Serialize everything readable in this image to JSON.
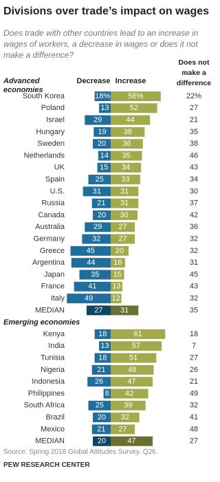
{
  "title": "Divisions over trade’s impact on wages",
  "subtitle": "Does trade with other countries lead to an increase in wages of workers, a decrease in wages or does it not make a difference?",
  "source": "Source: Spring 2018 Global Attitudes Survey. Q26.",
  "credit": "PEW RESEARCH CENTER",
  "chart_data": {
    "type": "diverging-bar",
    "column_headers": [
      "Decrease",
      "Increase",
      "Does not make a difference"
    ],
    "groups": [
      {
        "name": "Advanced economies",
        "categories": [
          "South Korea",
          "Poland",
          "Israel",
          "Hungary",
          "Sweden",
          "Netherlands",
          "UK",
          "Spain",
          "U.S.",
          "Russia",
          "Canada",
          "Australia",
          "Germany",
          "Greece",
          "Argentina",
          "Japan",
          "France",
          "Italy",
          "MEDIAN"
        ],
        "series": [
          {
            "name": "Decrease",
            "values": [
              18,
              13,
              29,
              19,
              20,
              14,
              15,
              25,
              31,
              21,
              20,
              29,
              32,
              45,
              44,
              35,
              41,
              49,
              27
            ],
            "value_labels": [
              "18%",
              "13",
              "29",
              "19",
              "20",
              "14",
              "15",
              "25",
              "31",
              "21",
              "20",
              "29",
              "32",
              "45",
              "44",
              "35",
              "41",
              "49",
              "27"
            ],
            "colors": [
              "#1f6e9c",
              "#1f6e9c",
              "#1f6e9c",
              "#1f6e9c",
              "#1f6e9c",
              "#1f6e9c",
              "#1f6e9c",
              "#1f6e9c",
              "#1f6e9c",
              "#1f6e9c",
              "#1f6e9c",
              "#1f6e9c",
              "#1f6e9c",
              "#1f6e9c",
              "#1f6e9c",
              "#1f6e9c",
              "#1f6e9c",
              "#1f6e9c",
              "#0c4566"
            ]
          },
          {
            "name": "Increase",
            "values": [
              56,
              52,
              44,
              38,
              36,
              35,
              34,
              33,
              31,
              31,
              30,
              27,
              27,
              20,
              16,
              15,
              13,
              12,
              31
            ],
            "value_labels": [
              "56%",
              "52",
              "44",
              "38",
              "36",
              "35",
              "34",
              "33",
              "31",
              "31",
              "30",
              "27",
              "27",
              "20",
              "16",
              "15",
              "13",
              "12",
              "31"
            ],
            "colors": [
              "#a2aa4c",
              "#a2aa4c",
              "#a2aa4c",
              "#a2aa4c",
              "#a2aa4c",
              "#a2aa4c",
              "#a2aa4c",
              "#a2aa4c",
              "#a2aa4c",
              "#a2aa4c",
              "#a2aa4c",
              "#a2aa4c",
              "#a2aa4c",
              "#a2aa4c",
              "#a2aa4c",
              "#a2aa4c",
              "#a2aa4c",
              "#a2aa4c",
              "#6a7130"
            ]
          },
          {
            "name": "Does not make a difference",
            "values": [
              22,
              27,
              21,
              35,
              38,
              46,
              43,
              34,
              30,
              37,
              42,
              36,
              32,
              32,
              31,
              45,
              43,
              32,
              35
            ],
            "value_labels": [
              "22%",
              "27",
              "21",
              "35",
              "38",
              "46",
              "43",
              "34",
              "30",
              "37",
              "42",
              "36",
              "32",
              "32",
              "31",
              "45",
              "43",
              "32",
              "35"
            ]
          }
        ]
      },
      {
        "name": "Emerging economies",
        "categories": [
          "Kenya",
          "India",
          "Tunisia",
          "Nigeria",
          "Indonesia",
          "Philippines",
          "South Africa",
          "Brazil",
          "Mexico",
          "MEDIAN"
        ],
        "series": [
          {
            "name": "Decrease",
            "values": [
              18,
              13,
              18,
              21,
              26,
              8,
              25,
              20,
              21,
              20
            ],
            "colors": [
              "#1f6e9c",
              "#1f6e9c",
              "#1f6e9c",
              "#1f6e9c",
              "#1f6e9c",
              "#1f6e9c",
              "#1f6e9c",
              "#1f6e9c",
              "#1f6e9c",
              "#0c4566"
            ]
          },
          {
            "name": "Increase",
            "values": [
              61,
              57,
              51,
              48,
              47,
              42,
              39,
              32,
              27,
              47
            ],
            "colors": [
              "#a2aa4c",
              "#a2aa4c",
              "#a2aa4c",
              "#a2aa4c",
              "#a2aa4c",
              "#a2aa4c",
              "#a2aa4c",
              "#a2aa4c",
              "#a2aa4c",
              "#6a7130"
            ]
          },
          {
            "name": "Does not make a difference",
            "values": [
              18,
              7,
              27,
              26,
              21,
              49,
              32,
              41,
              48,
              27
            ]
          }
        ]
      }
    ]
  }
}
